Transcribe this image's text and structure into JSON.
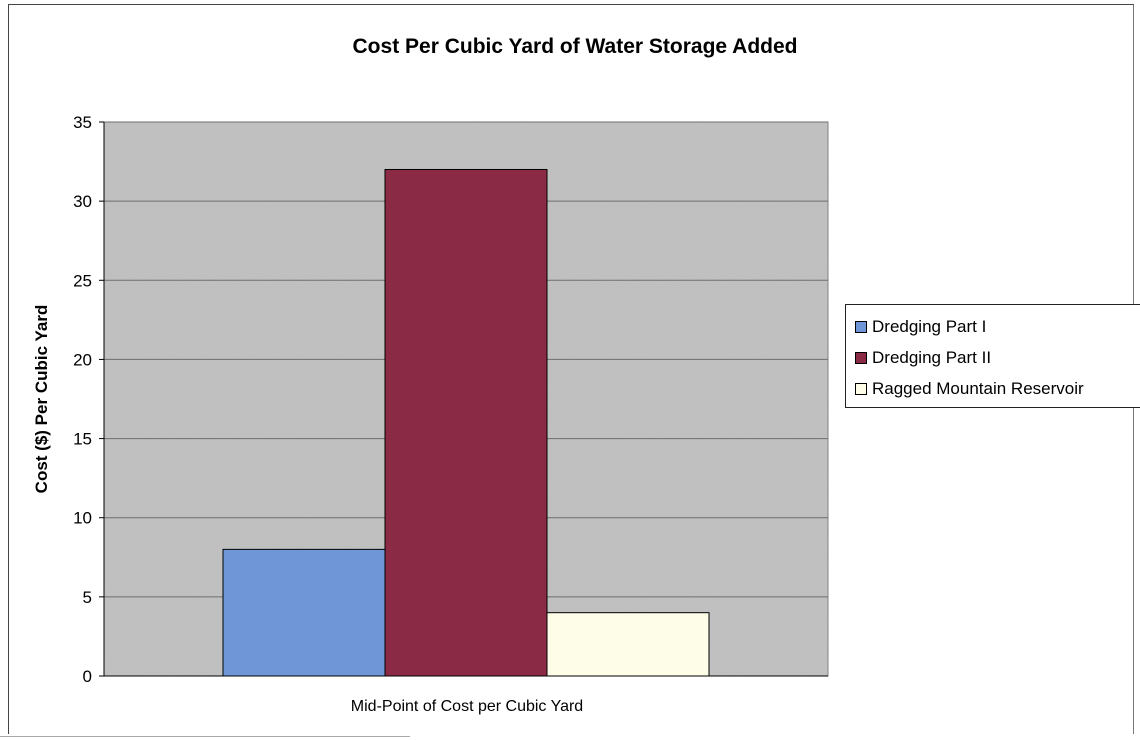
{
  "chart_data": {
    "type": "bar",
    "title": "Cost Per Cubic Yard of Water Storage Added",
    "xlabel": "Mid-Point of Cost per Cubic Yard",
    "ylabel": "Cost ($) Per Cubic Yard",
    "categories": [
      "Mid-Point of Cost per Cubic Yard"
    ],
    "series": [
      {
        "name": "Dredging Part I",
        "values": [
          8
        ],
        "color": "#6f97d8"
      },
      {
        "name": "Dredging Part II",
        "values": [
          32
        ],
        "color": "#8b2a45"
      },
      {
        "name": "Ragged Mountain Reservoir",
        "values": [
          4
        ],
        "color": "#fefee8"
      }
    ],
    "ylim": [
      0,
      35
    ],
    "yticks": [
      "0",
      "5",
      "10",
      "15",
      "20",
      "25",
      "30",
      "35"
    ],
    "grid": true,
    "legend_position": "right",
    "plot_background": "#c0c0c0"
  }
}
